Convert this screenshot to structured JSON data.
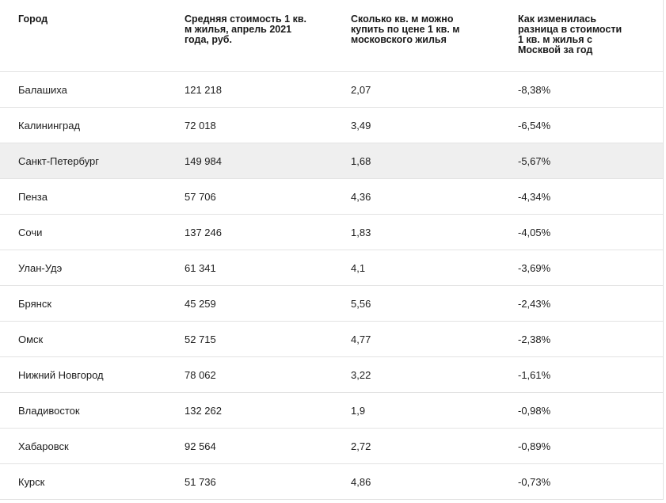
{
  "table": {
    "headers": [
      "Город",
      "Средняя стоимость 1 кв. м жилья, апрель 2021 года, руб.",
      "Сколько кв. м можно купить по цене 1 кв. м московского жилья",
      "Как изменилась разница в стоимости 1 кв. м жилья с Москвой за год"
    ],
    "highlighted_row": "Санкт-Петербург",
    "rows": [
      {
        "city": "Балашиха",
        "price": "121 218",
        "sqm_for_moscow": "2,07",
        "gap_change": "-8,38%"
      },
      {
        "city": "Калининград",
        "price": "72 018",
        "sqm_for_moscow": "3,49",
        "gap_change": "-6,54%"
      },
      {
        "city": "Санкт-Петербург",
        "price": "149 984",
        "sqm_for_moscow": "1,68",
        "gap_change": "-5,67%"
      },
      {
        "city": "Пенза",
        "price": "57 706",
        "sqm_for_moscow": "4,36",
        "gap_change": "-4,34%"
      },
      {
        "city": "Сочи",
        "price": "137 246",
        "sqm_for_moscow": "1,83",
        "gap_change": "-4,05%"
      },
      {
        "city": "Улан-Удэ",
        "price": "61 341",
        "sqm_for_moscow": "4,1",
        "gap_change": "-3,69%"
      },
      {
        "city": "Брянск",
        "price": "45 259",
        "sqm_for_moscow": "5,56",
        "gap_change": "-2,43%"
      },
      {
        "city": "Омск",
        "price": "52 715",
        "sqm_for_moscow": "4,77",
        "gap_change": "-2,38%"
      },
      {
        "city": "Нижний Новгород",
        "price": "78 062",
        "sqm_for_moscow": "3,22",
        "gap_change": "-1,61%"
      },
      {
        "city": "Владивосток",
        "price": "132 262",
        "sqm_for_moscow": "1,9",
        "gap_change": "-0,98%"
      },
      {
        "city": "Хабаровск",
        "price": "92 564",
        "sqm_for_moscow": "2,72",
        "gap_change": "-0,89%"
      },
      {
        "city": "Курск",
        "price": "51 736",
        "sqm_for_moscow": "4,86",
        "gap_change": "-0,73%"
      }
    ]
  }
}
